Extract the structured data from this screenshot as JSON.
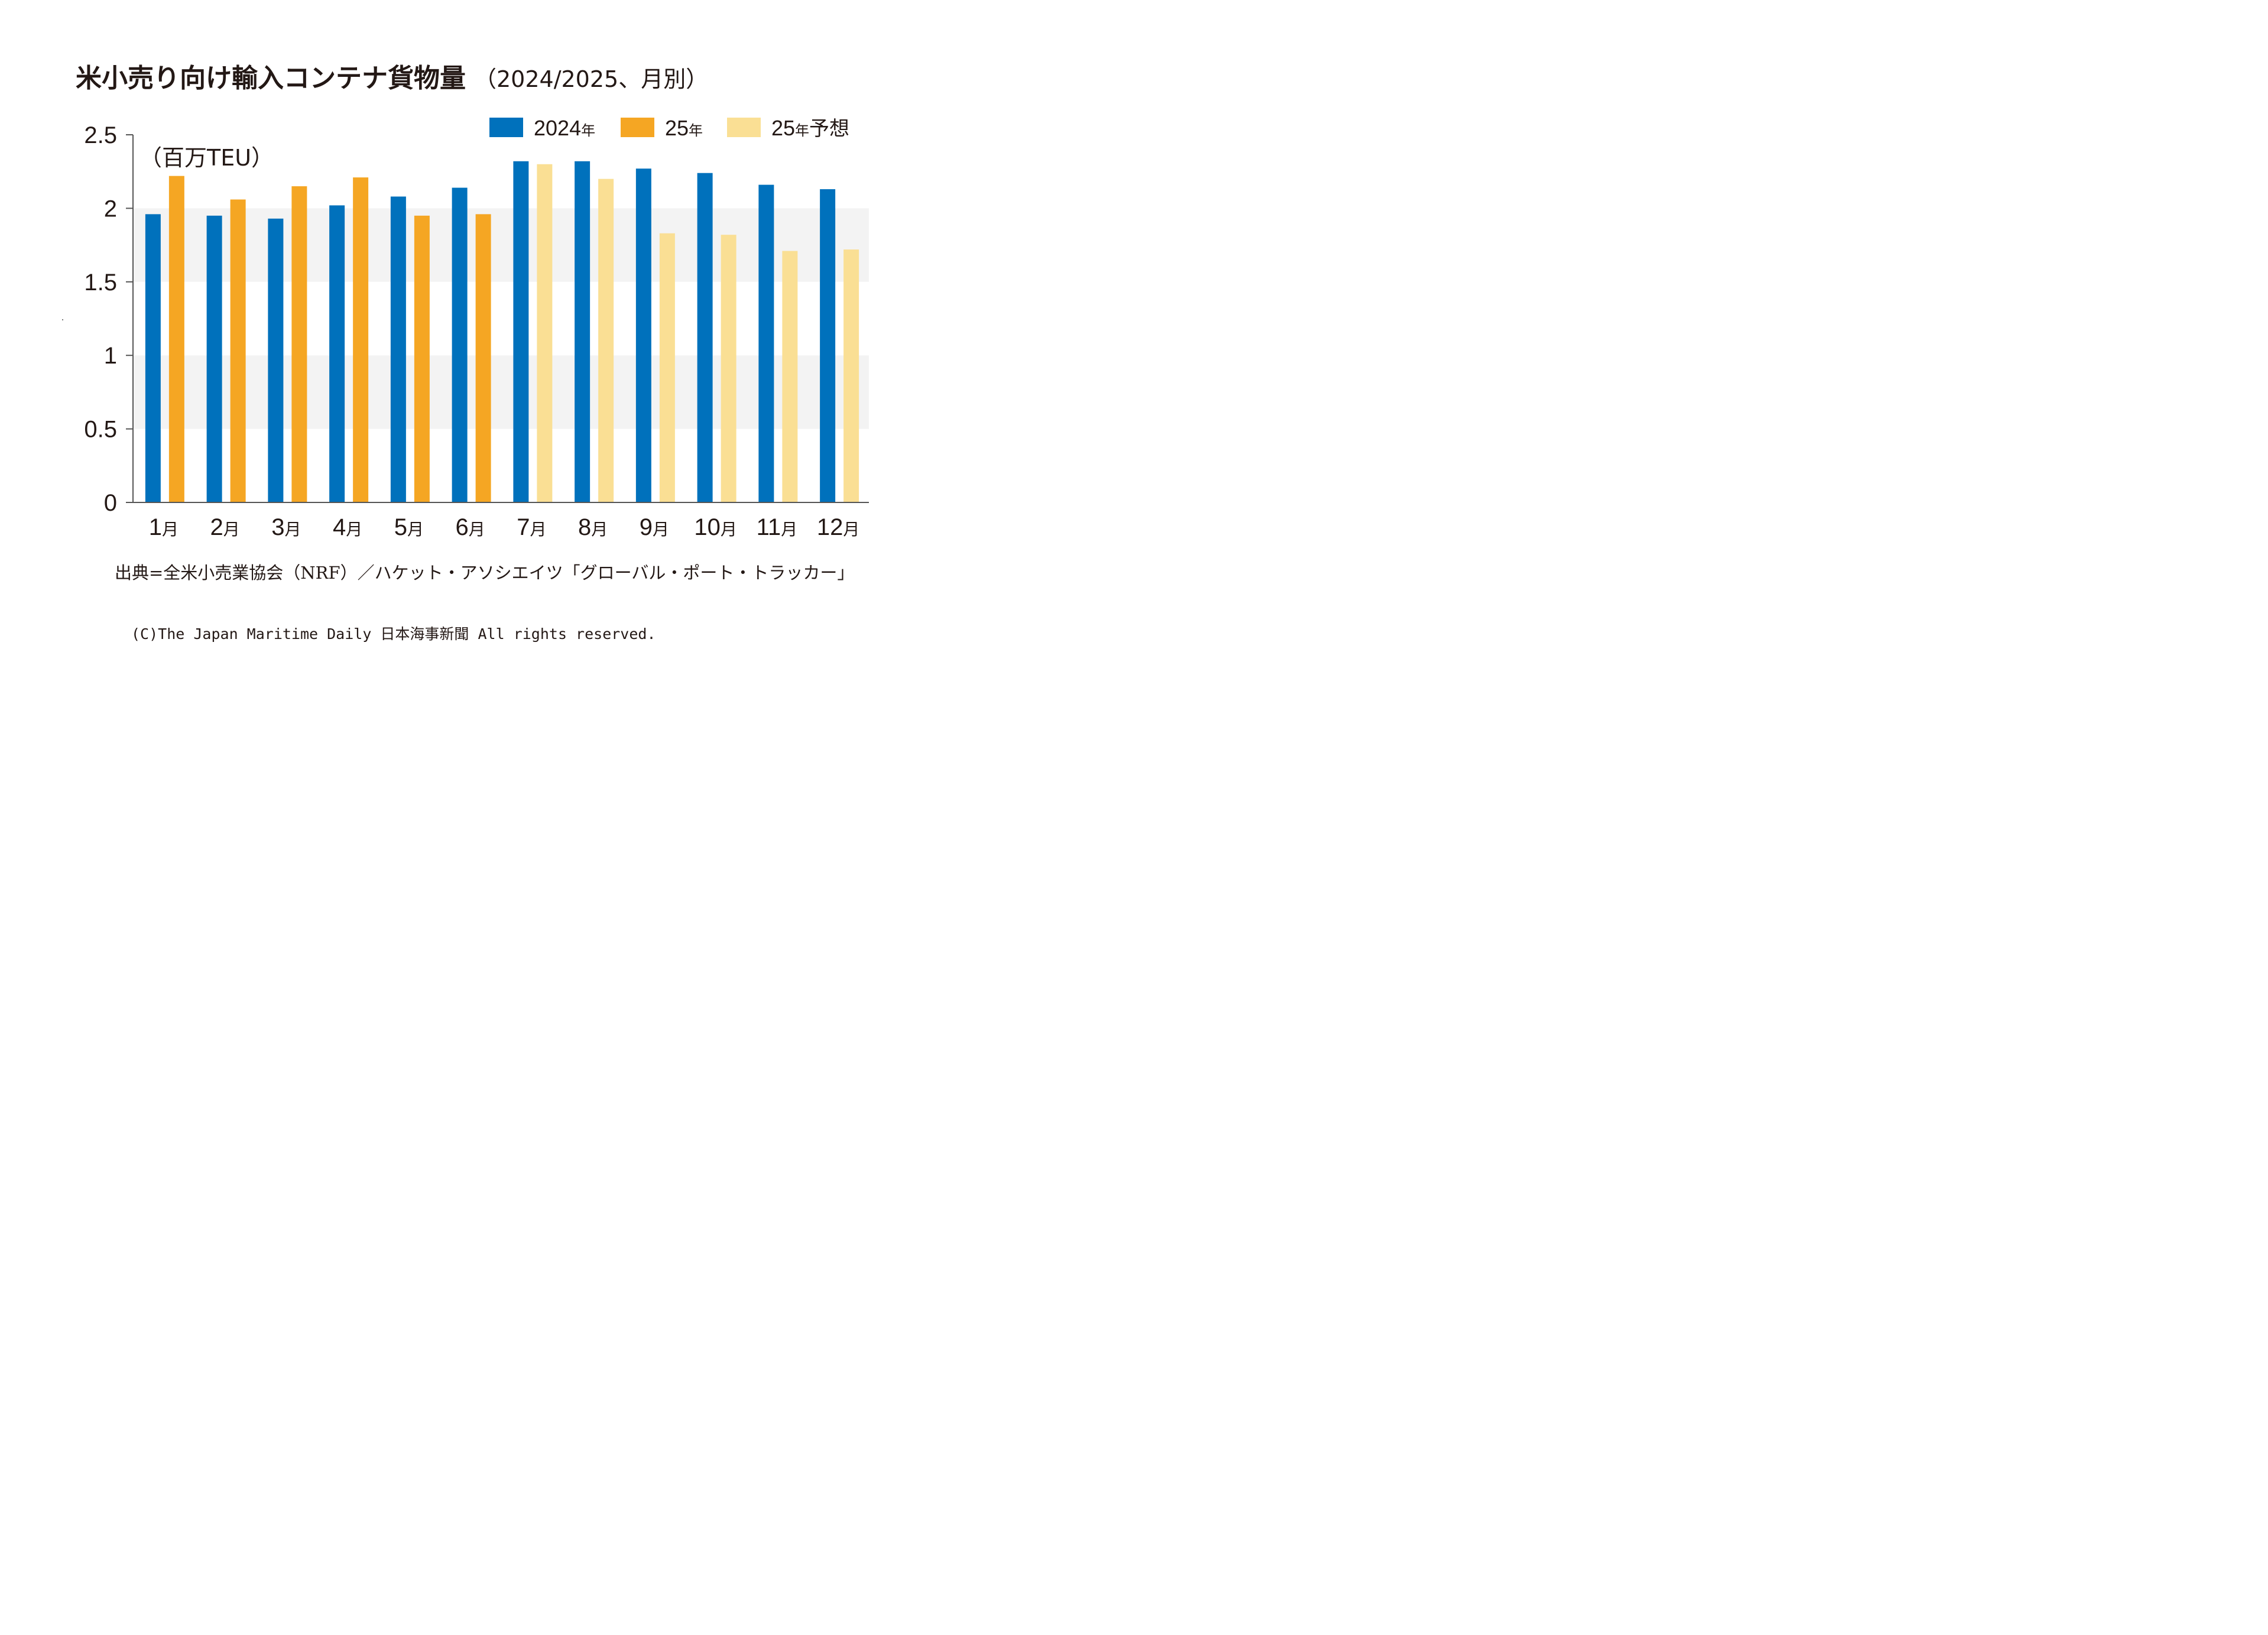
{
  "title": "米小売り向け輸入コンテナ貨物量",
  "subtitle": "（2024/2025、月別）",
  "source": "出典=全米小売業協会（NRF）／ハケット・アソシエイツ「グローバル・ポート・トラッカー」",
  "copyright": "(C)The Japan Maritime Daily 日本海事新聞 All rights reserved.",
  "colors": {
    "y2024": "#0071bc",
    "y2025": "#f5a623",
    "forecast": "#fadf94",
    "band": "#f3f3f3",
    "axis": "#555555",
    "text": "#231815"
  },
  "chart_data": {
    "type": "bar",
    "title": "米小売り向け輸入コンテナ貨物量",
    "ylabel": "（百万TEU）",
    "ylim": [
      0,
      2.5
    ],
    "yticks": [
      0,
      0.5,
      1,
      1.5,
      2,
      2.5
    ],
    "ytick_labels": [
      "0",
      "0.5",
      "1",
      "1.5",
      "2",
      "2.5"
    ],
    "legend_position": "top-right",
    "categories": [
      "1月",
      "2月",
      "3月",
      "4月",
      "5月",
      "6月",
      "7月",
      "8月",
      "9月",
      "10月",
      "11月",
      "12月"
    ],
    "series": [
      {
        "name": "2024年",
        "values": [
          1.96,
          1.95,
          1.93,
          2.02,
          2.08,
          2.14,
          2.32,
          2.32,
          2.27,
          2.24,
          2.16,
          2.13
        ]
      },
      {
        "name": "25年",
        "values": [
          2.22,
          2.06,
          2.15,
          2.21,
          1.95,
          1.96,
          null,
          null,
          null,
          null,
          null,
          null
        ]
      },
      {
        "name": "25年予想",
        "values": [
          null,
          null,
          null,
          null,
          null,
          null,
          2.3,
          2.2,
          1.83,
          1.82,
          1.71,
          1.72
        ]
      }
    ]
  }
}
